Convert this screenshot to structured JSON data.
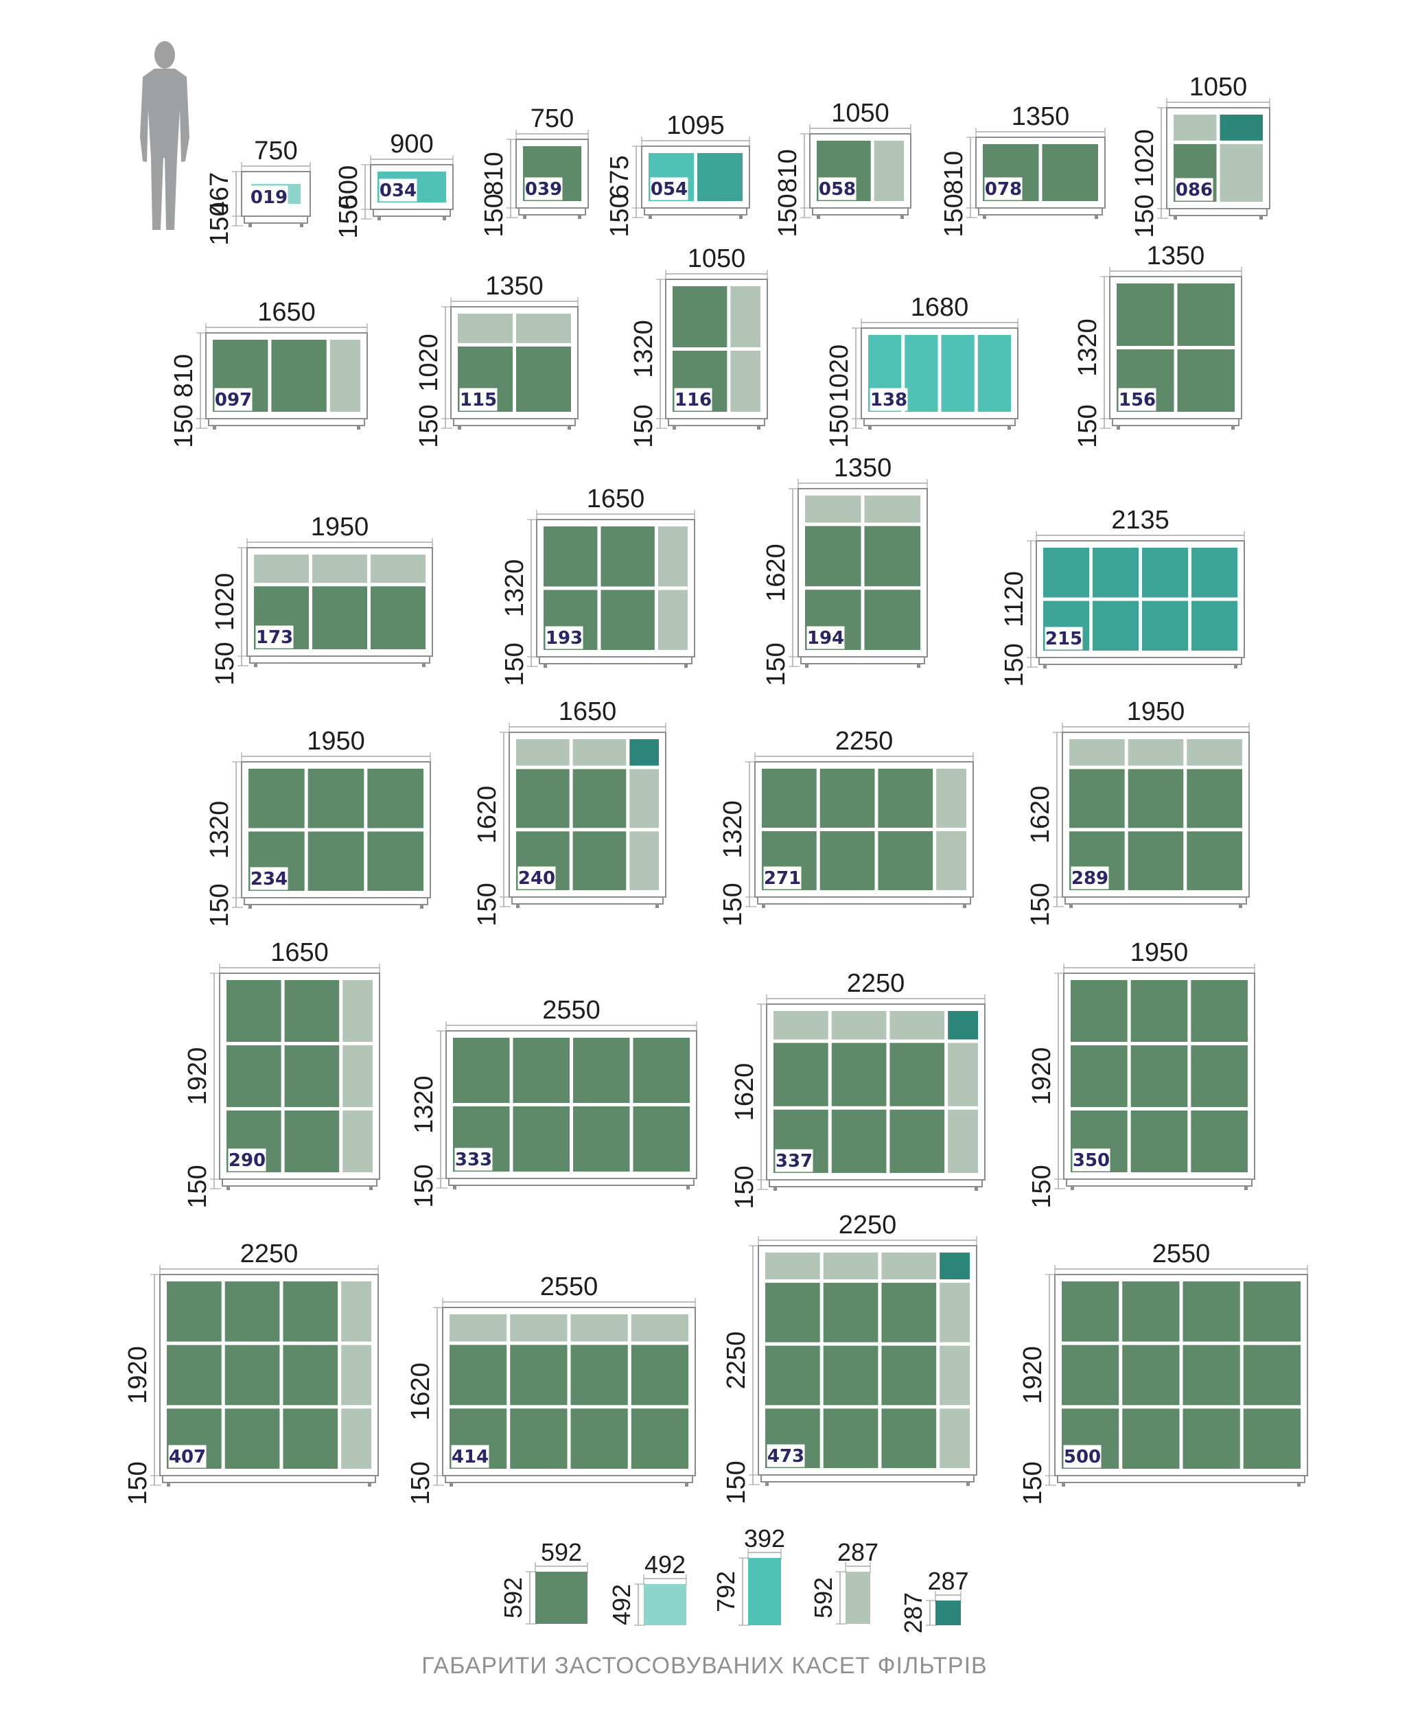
{
  "units": [
    {
      "code": "019",
      "width": "750",
      "height": "467",
      "base": "150",
      "cells": [
        {
          "c": "mint",
          "r": "small"
        }
      ]
    },
    {
      "code": "034",
      "width": "900",
      "height": "500",
      "base": "150",
      "cells": [
        {
          "c": "teal"
        }
      ]
    },
    {
      "code": "039",
      "width": "750",
      "height": "810",
      "base": "150",
      "cells": [
        {
          "c": "green"
        }
      ]
    },
    {
      "code": "054",
      "width": "1095",
      "height": "675",
      "base": "150",
      "cells": [
        {
          "c": "teal"
        },
        {
          "c": "teal2"
        }
      ]
    },
    {
      "code": "058",
      "width": "1050",
      "height": "810",
      "base": "150",
      "cells": [
        {
          "c": "green"
        },
        {
          "c": "grey"
        }
      ]
    },
    {
      "code": "078",
      "width": "1350",
      "height": "810",
      "base": "150",
      "cells": [
        {
          "c": "green"
        },
        {
          "c": "green"
        }
      ]
    },
    {
      "code": "086",
      "width": "1050",
      "height": "1020",
      "base": "150",
      "cells": [
        {
          "c": "grey"
        },
        {
          "c": "dteal"
        },
        {
          "c": "green"
        },
        {
          "c": "grey"
        }
      ]
    },
    {
      "code": "097",
      "width": "1650",
      "height": "810",
      "base": "150",
      "cells": [
        {
          "c": "green"
        },
        {
          "c": "green"
        },
        {
          "c": "grey"
        }
      ]
    },
    {
      "code": "115",
      "width": "1350",
      "height": "1020",
      "base": "150",
      "cells": [
        {
          "c": "grey"
        },
        {
          "c": "grey"
        },
        {
          "c": "green"
        },
        {
          "c": "green"
        }
      ]
    },
    {
      "code": "116",
      "width": "1050",
      "height": "1320",
      "base": "150",
      "cells": [
        {
          "c": "green"
        },
        {
          "c": "grey"
        },
        {
          "c": "green"
        },
        {
          "c": "grey"
        }
      ]
    },
    {
      "code": "138",
      "width": "1680",
      "height": "1020",
      "base": "150",
      "cells": [
        {
          "c": "teal"
        },
        {
          "c": "teal"
        },
        {
          "c": "teal"
        },
        {
          "c": "teal"
        }
      ]
    },
    {
      "code": "156",
      "width": "1350",
      "height": "1320",
      "base": "150",
      "cells": [
        {
          "c": "green"
        },
        {
          "c": "green"
        },
        {
          "c": "green"
        },
        {
          "c": "green"
        }
      ]
    },
    {
      "code": "173",
      "width": "1950",
      "height": "1020",
      "base": "150",
      "cells": [
        {
          "c": "grey"
        },
        {
          "c": "grey"
        },
        {
          "c": "grey"
        },
        {
          "c": "green"
        },
        {
          "c": "green"
        },
        {
          "c": "green"
        }
      ]
    },
    {
      "code": "193",
      "width": "1650",
      "height": "1320",
      "base": "150",
      "cells": [
        {
          "c": "green"
        },
        {
          "c": "green"
        },
        {
          "c": "grey"
        },
        {
          "c": "green"
        },
        {
          "c": "green"
        },
        {
          "c": "grey"
        }
      ]
    },
    {
      "code": "194",
      "width": "1350",
      "height": "1620",
      "base": "150",
      "cells": [
        {
          "c": "grey"
        },
        {
          "c": "grey"
        },
        {
          "c": "green"
        },
        {
          "c": "green"
        },
        {
          "c": "green"
        },
        {
          "c": "green"
        }
      ]
    },
    {
      "code": "215",
      "width": "2135",
      "height": "1120",
      "base": "150",
      "cells": [
        {
          "c": "teal2"
        },
        {
          "c": "teal2"
        },
        {
          "c": "teal2"
        },
        {
          "c": "teal2"
        },
        {
          "c": "teal2"
        },
        {
          "c": "teal2"
        },
        {
          "c": "teal2"
        },
        {
          "c": "teal2"
        }
      ]
    },
    {
      "code": "234",
      "width": "1950",
      "height": "1320",
      "base": "150",
      "cells": [
        {
          "c": "green"
        },
        {
          "c": "green"
        },
        {
          "c": "green"
        },
        {
          "c": "green"
        },
        {
          "c": "green"
        },
        {
          "c": "green"
        }
      ]
    },
    {
      "code": "240",
      "width": "1650",
      "height": "1620",
      "base": "150",
      "cells": [
        {
          "c": "grey"
        },
        {
          "c": "grey"
        },
        {
          "c": "dteal"
        },
        {
          "c": "green"
        },
        {
          "c": "green"
        },
        {
          "c": "grey"
        },
        {
          "c": "green"
        },
        {
          "c": "green"
        },
        {
          "c": "grey"
        }
      ]
    },
    {
      "code": "271",
      "width": "2250",
      "height": "1320",
      "base": "150",
      "cells": [
        {
          "c": "green"
        },
        {
          "c": "green"
        },
        {
          "c": "green"
        },
        {
          "c": "grey"
        },
        {
          "c": "green"
        },
        {
          "c": "green"
        },
        {
          "c": "green"
        },
        {
          "c": "grey"
        }
      ]
    },
    {
      "code": "289",
      "width": "1950",
      "height": "1620",
      "base": "150",
      "cells": [
        {
          "c": "grey"
        },
        {
          "c": "grey"
        },
        {
          "c": "grey"
        },
        {
          "c": "green"
        },
        {
          "c": "green"
        },
        {
          "c": "green"
        },
        {
          "c": "green"
        },
        {
          "c": "green"
        },
        {
          "c": "green"
        }
      ]
    },
    {
      "code": "290",
      "width": "1650",
      "height": "1920",
      "base": "150",
      "cells": [
        {
          "c": "green"
        },
        {
          "c": "green"
        },
        {
          "c": "grey"
        },
        {
          "c": "green"
        },
        {
          "c": "green"
        },
        {
          "c": "grey"
        },
        {
          "c": "green"
        },
        {
          "c": "green"
        },
        {
          "c": "grey"
        }
      ]
    },
    {
      "code": "333",
      "width": "2550",
      "height": "1320",
      "base": "150",
      "cells": [
        {
          "c": "green"
        },
        {
          "c": "green"
        },
        {
          "c": "green"
        },
        {
          "c": "green"
        },
        {
          "c": "green"
        },
        {
          "c": "green"
        },
        {
          "c": "green"
        },
        {
          "c": "green"
        }
      ]
    },
    {
      "code": "337",
      "width": "2250",
      "height": "1620",
      "base": "150",
      "cells": [
        {
          "c": "grey"
        },
        {
          "c": "grey"
        },
        {
          "c": "grey"
        },
        {
          "c": "dteal"
        },
        {
          "c": "green"
        },
        {
          "c": "green"
        },
        {
          "c": "green"
        },
        {
          "c": "grey"
        },
        {
          "c": "green"
        },
        {
          "c": "green"
        },
        {
          "c": "green"
        },
        {
          "c": "grey"
        }
      ]
    },
    {
      "code": "350",
      "width": "1950",
      "height": "1920",
      "base": "150",
      "cells": [
        {
          "c": "green"
        },
        {
          "c": "green"
        },
        {
          "c": "green"
        },
        {
          "c": "green"
        },
        {
          "c": "green"
        },
        {
          "c": "green"
        },
        {
          "c": "green"
        },
        {
          "c": "green"
        },
        {
          "c": "green"
        }
      ]
    },
    {
      "code": "407",
      "width": "2250",
      "height": "1920",
      "base": "150",
      "cells": [
        {
          "c": "green"
        },
        {
          "c": "green"
        },
        {
          "c": "green"
        },
        {
          "c": "grey"
        },
        {
          "c": "green"
        },
        {
          "c": "green"
        },
        {
          "c": "green"
        },
        {
          "c": "grey"
        },
        {
          "c": "green"
        },
        {
          "c": "green"
        },
        {
          "c": "green"
        },
        {
          "c": "grey"
        }
      ]
    },
    {
      "code": "414",
      "width": "2550",
      "height": "1620",
      "base": "150",
      "cells": [
        {
          "c": "grey"
        },
        {
          "c": "grey"
        },
        {
          "c": "grey"
        },
        {
          "c": "grey"
        },
        {
          "c": "green"
        },
        {
          "c": "green"
        },
        {
          "c": "green"
        },
        {
          "c": "green"
        },
        {
          "c": "green"
        },
        {
          "c": "green"
        },
        {
          "c": "green"
        },
        {
          "c": "green"
        }
      ]
    },
    {
      "code": "473",
      "width": "2250",
      "height": "2250",
      "base": "150",
      "cells": [
        {
          "c": "grey"
        },
        {
          "c": "grey"
        },
        {
          "c": "grey"
        },
        {
          "c": "dteal"
        },
        {
          "c": "green"
        },
        {
          "c": "green"
        },
        {
          "c": "green"
        },
        {
          "c": "grey"
        },
        {
          "c": "green"
        },
        {
          "c": "green"
        },
        {
          "c": "green"
        },
        {
          "c": "grey"
        },
        {
          "c": "green"
        },
        {
          "c": "green"
        },
        {
          "c": "green"
        },
        {
          "c": "grey"
        }
      ]
    },
    {
      "code": "500",
      "width": "2550",
      "height": "1920",
      "base": "150",
      "cells": [
        {
          "c": "green"
        },
        {
          "c": "green"
        },
        {
          "c": "green"
        },
        {
          "c": "green"
        },
        {
          "c": "green"
        },
        {
          "c": "green"
        },
        {
          "c": "green"
        },
        {
          "c": "green"
        },
        {
          "c": "green"
        },
        {
          "c": "green"
        },
        {
          "c": "green"
        },
        {
          "c": "green"
        }
      ]
    }
  ],
  "filters": [
    {
      "width": "592",
      "height": "592",
      "color": "green"
    },
    {
      "width": "492",
      "height": "492",
      "color": "mint"
    },
    {
      "width": "392",
      "height": "792",
      "color": "teal"
    },
    {
      "width": "287",
      "height": "592",
      "color": "grey"
    },
    {
      "width": "287",
      "height": "287",
      "color": "dteal"
    }
  ],
  "colors": {
    "green": "#5e8a69",
    "grey": "#b3c5b6",
    "teal": "#4fc2b5",
    "teal2": "#3da396",
    "dteal": "#2c8679",
    "mint": "#8dd4cb",
    "frame": "#8a8c8e",
    "dim_line": "#a5a7a9",
    "person": "#9ea0a2",
    "caption": "#8e9092"
  },
  "icons": {
    "person": "person-silhouette-icon"
  },
  "caption": "ГАБАРИТИ ЗАСТОСОВУВАНИХ КАСЕТ ФІЛЬТРІВ"
}
